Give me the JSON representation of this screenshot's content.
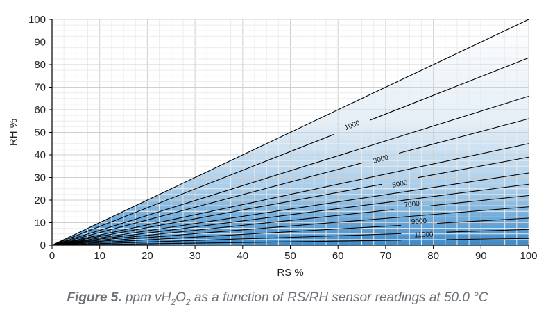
{
  "chart_data": {
    "type": "contour",
    "xlabel": "RS %",
    "ylabel": "RH %",
    "xlim": [
      0,
      100
    ],
    "ylim": [
      0,
      100
    ],
    "x_ticks": [
      0,
      10,
      20,
      30,
      40,
      50,
      60,
      70,
      80,
      90,
      100
    ],
    "y_ticks": [
      0,
      10,
      20,
      30,
      40,
      50,
      60,
      70,
      80,
      90,
      100
    ],
    "grid": true,
    "boundary_line": {
      "x": [
        0,
        100
      ],
      "y": [
        0,
        100
      ]
    },
    "contour_endpoints_y_at_x100": [
      83,
      66,
      56,
      45,
      39,
      32,
      27,
      22,
      17,
      12,
      7,
      3
    ],
    "contour_labels": [
      {
        "text": "1000",
        "x": 63,
        "y": 53
      },
      {
        "text": "3000",
        "x": 69,
        "y": 38
      },
      {
        "text": "5000",
        "x": 73,
        "y": 27
      },
      {
        "text": "7000",
        "x": 75.5,
        "y": 18
      },
      {
        "text": "9000",
        "x": 77,
        "y": 10.5
      },
      {
        "text": "11000",
        "x": 78,
        "y": 4.5
      }
    ],
    "colors": {
      "fill_light": "#ffffff",
      "fill_dark": "#3d8bc9",
      "line": "#000000",
      "grid": "#d4d4d4"
    }
  },
  "caption": {
    "figure_label": "Figure 5.",
    "text_before_sub1": " ppm vH",
    "sub1": "2",
    "text_mid": "O",
    "sub2": "2",
    "text_after": " as a function of RS/RH sensor readings at 50.0 °C"
  }
}
